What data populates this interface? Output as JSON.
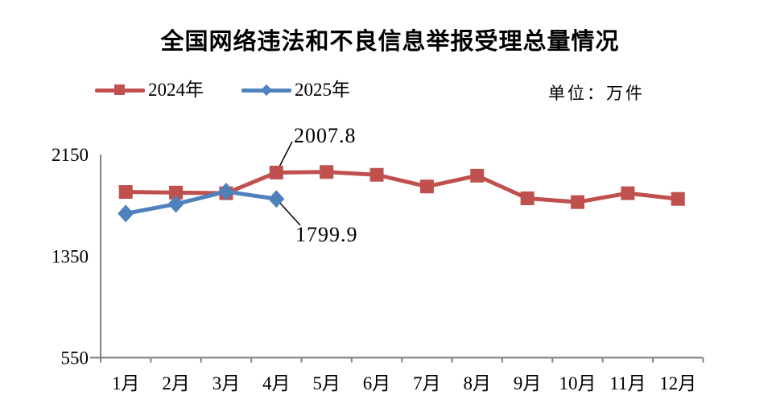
{
  "title": "全国网络违法和不良信息举报受理总量情况",
  "unit_label": "单位：万件",
  "chart_data": {
    "type": "line",
    "title": "全国网络违法和不良信息举报受理总量情况",
    "unit": "万件",
    "categories": [
      "1月",
      "2月",
      "3月",
      "4月",
      "5月",
      "6月",
      "7月",
      "8月",
      "9月",
      "10月",
      "11月",
      "12月"
    ],
    "series": [
      {
        "name": "2024年",
        "color": "#C0504D",
        "marker": "square",
        "values": [
          1855,
          1850,
          1845,
          2007.8,
          2012,
          1990,
          1898,
          1983,
          1805,
          1775,
          1845,
          1800
        ]
      },
      {
        "name": "2025年",
        "color": "#4F81BD",
        "marker": "diamond",
        "values": [
          1685,
          1760,
          1858,
          1799.9
        ]
      }
    ],
    "annotations": [
      {
        "series": 0,
        "point_index": 3,
        "text": "2007.8"
      },
      {
        "series": 1,
        "point_index": 3,
        "text": "1799.9"
      }
    ],
    "y_axis": {
      "min": 550,
      "max": 2150,
      "ticks": [
        550,
        1350,
        2150
      ]
    },
    "x_label_suffix": "月",
    "axis_color": "#808080",
    "text_color": "#000000",
    "grid": false,
    "legend_position": "top-left"
  }
}
